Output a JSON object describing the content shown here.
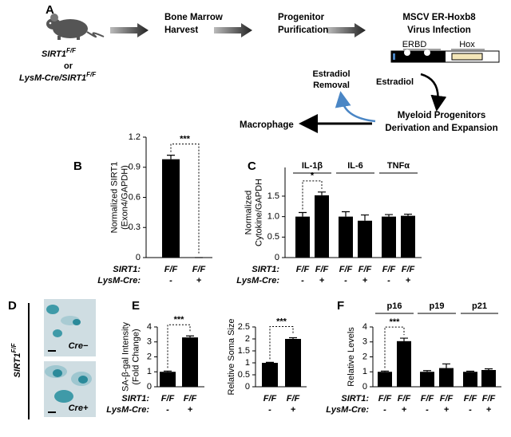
{
  "panel_labels": [
    "A",
    "B",
    "C",
    "D",
    "E",
    "F"
  ],
  "diagram": {
    "genotype_1": {
      "base": "SIRT1",
      "sup": "F/F"
    },
    "or": "or",
    "genotype_2": {
      "base": "LysM-Cre/SIRT1",
      "sup": "F/F"
    },
    "steps": [
      [
        "Bone Marrow",
        "Harvest"
      ],
      [
        "Progenitor",
        "Purification"
      ],
      [
        "MSCV ER-Hoxb8",
        "Virus Infection"
      ]
    ],
    "construct": [
      "ERBD",
      "Hox"
    ],
    "estradiol": "Estradiol",
    "removal": [
      "Estradiol",
      "Removal"
    ],
    "expansion": [
      "Myeloid Progenitors",
      "Derivation and Expansion"
    ],
    "macrophage": "Macrophage"
  },
  "micrographs": {
    "genotype": {
      "base": "SIRT1",
      "sup": "F/F"
    },
    "labels": [
      "Cre−",
      "Cre+"
    ]
  },
  "chart_data": [
    {
      "type": "bar",
      "ylabel": [
        "Normalized SIRT1",
        "(Exon4/GAPDH)"
      ],
      "ylim": [
        0,
        1.2
      ],
      "yticks": [
        0,
        0.3,
        0.6,
        0.9,
        1.2
      ],
      "series": [
        {
          "color": "#000000",
          "values": [
            0.98,
            0
          ],
          "errors": [
            0.04,
            0
          ]
        }
      ],
      "genotype": [
        {
          "label": "SIRT1:",
          "values": [
            "F/F",
            "F/F"
          ]
        },
        {
          "label": "LysM-Cre:",
          "values": [
            "-",
            "+"
          ]
        }
      ],
      "annotation": "***"
    },
    {
      "type": "bar",
      "ylabel": [
        "Normalized",
        "Cytokine/GAPDH"
      ],
      "ylim": [
        0,
        2.2
      ],
      "yticks": [
        0,
        0.5,
        {
          "value": 1,
          "label": "1.0"
        },
        1.5
      ],
      "categories": [
        "IL-1β",
        "IL-6",
        "TNFα"
      ],
      "series": [
        {
          "color": "#000000",
          "values": [
            1.0,
            1.0,
            1.0
          ],
          "errors": [
            0.1,
            0.12,
            0.05
          ]
        },
        {
          "color": "#000000",
          "values": [
            1.52,
            0.9,
            1.02
          ],
          "errors": [
            0.08,
            0.14,
            0.04
          ]
        }
      ],
      "genotype": [
        {
          "label": "SIRT1:",
          "values": [
            "F/F",
            "F/F",
            "F/F",
            "F/F",
            "F/F",
            "F/F"
          ]
        },
        {
          "label": "LysM-Cre:",
          "values": [
            "-",
            "+",
            "-",
            "+",
            "-",
            "+"
          ]
        }
      ],
      "annotation": "*"
    },
    {
      "type": "bar",
      "ylabel": [
        "SA-β-gal Intensity",
        "(Fold Change)"
      ],
      "ylim": [
        0,
        4
      ],
      "yticks": [
        0,
        1,
        2,
        3,
        4
      ],
      "series": [
        {
          "color": "#000000",
          "values": [
            1.0,
            3.3
          ],
          "errors": [
            0.05,
            0.1
          ]
        }
      ],
      "genotype": [
        {
          "label": "SIRT1:",
          "values": [
            "F/F",
            "F/F"
          ]
        },
        {
          "label": "LysM-Cre:",
          "values": [
            "-",
            "+"
          ]
        }
      ],
      "annotation": "***"
    },
    {
      "type": "bar",
      "ylabel": [
        "Relative Soma Size"
      ],
      "ylim": [
        0,
        2.5
      ],
      "yticks": [
        0,
        0.5,
        1,
        1.5,
        2,
        2.5
      ],
      "series": [
        {
          "color": "#000000",
          "values": [
            1.0,
            2.0
          ],
          "errors": [
            0.02,
            0.05
          ]
        }
      ],
      "genotype": [
        {
          "values": [
            "F/F",
            "F/F"
          ]
        },
        {
          "values": [
            "-",
            "+"
          ]
        }
      ],
      "annotation": "***"
    },
    {
      "type": "bar",
      "ylabel": [
        "Relative Levels"
      ],
      "ylim": [
        0,
        4
      ],
      "yticks": [
        0,
        1,
        2,
        3,
        4
      ],
      "categories": [
        "p16",
        "p19",
        "p21"
      ],
      "series": [
        {
          "color": "#000000",
          "values": [
            1.0,
            1.0,
            1.0
          ],
          "errors": [
            0.05,
            0.08,
            0.04
          ]
        },
        {
          "color": "#000000",
          "values": [
            3.05,
            1.25,
            1.12
          ],
          "errors": [
            0.2,
            0.28,
            0.08
          ]
        }
      ],
      "genotype": [
        {
          "label": "SIRT1:",
          "values": [
            "F/F",
            "F/F",
            "F/F",
            "F/F",
            "F/F",
            "F/F"
          ]
        },
        {
          "label": "LysM-Cre:",
          "values": [
            "-",
            "+",
            "-",
            "+",
            "-",
            "+"
          ]
        }
      ],
      "annotation": "***"
    }
  ]
}
